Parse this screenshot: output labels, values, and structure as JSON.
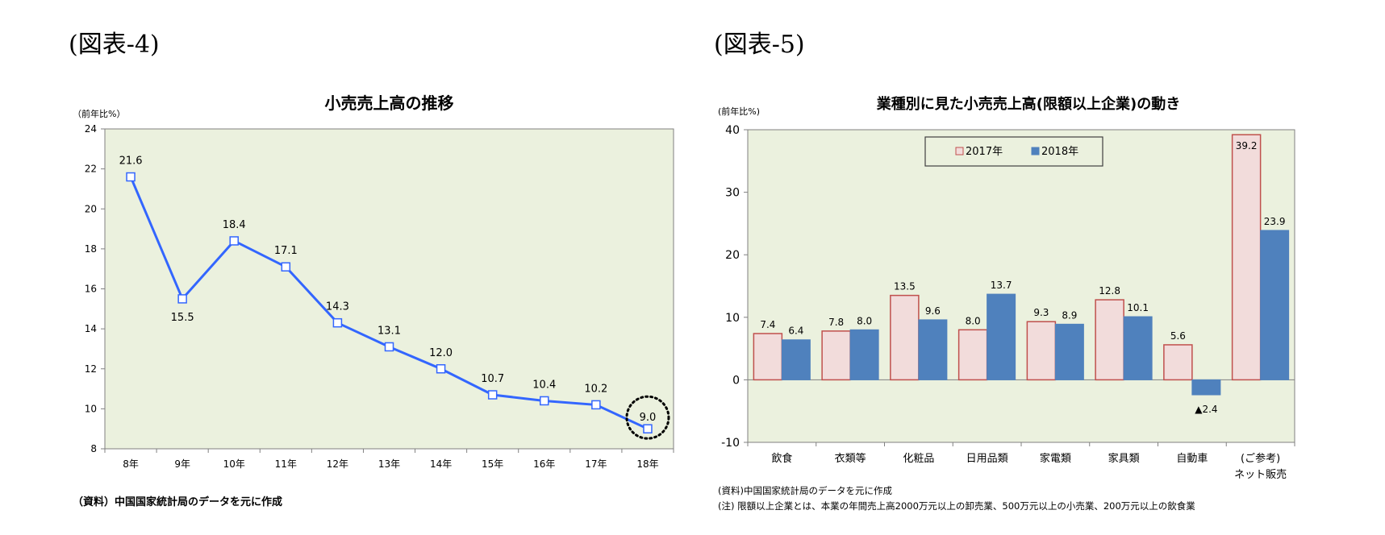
{
  "panel1": {
    "label": "(図表-4)",
    "source": "（資料）中国国家統計局のデータを元に作成"
  },
  "panel2": {
    "label": "(図表-5)",
    "source": "(資料)中国国家統計局のデータを元に作成",
    "note": "(注) 限額以上企業とは、本業の年間売上高2000万元以上の卸売業、500万元以上の小売業、200万元以上の飲食業"
  },
  "colors": {
    "plot_bg": "#ebf1de",
    "line": "#3366ff",
    "bar_2017": "#f2dcdb",
    "bar_2017_border": "#c0504d",
    "bar_2018": "#4f81bd"
  },
  "chart_data": [
    {
      "type": "line",
      "title": "小売売上高の推移",
      "ylabel": "（前年比%）",
      "categories": [
        "8年",
        "9年",
        "10年",
        "11年",
        "12年",
        "13年",
        "14年",
        "15年",
        "16年",
        "17年",
        "18年"
      ],
      "values": [
        21.6,
        15.5,
        18.4,
        17.1,
        14.3,
        13.1,
        12.0,
        10.7,
        10.4,
        10.2,
        9.0
      ],
      "data_labels": [
        "21.6",
        "15.5",
        "18.4",
        "17.1",
        "14.3",
        "13.1",
        "12.0",
        "10.7",
        "10.4",
        "10.2",
        "9.0"
      ],
      "ylim": [
        8,
        24
      ],
      "yticks": [
        "8",
        "10",
        "12",
        "14",
        "16",
        "18",
        "20",
        "22",
        "24"
      ],
      "highlight_index": 10,
      "grid": false
    },
    {
      "type": "bar",
      "title": "業種別に見た小売売上高(限額以上企業)の動き",
      "ylabel": "(前年比%)",
      "categories": [
        "飲食",
        "衣類等",
        "化粧品",
        "日用品類",
        "家電類",
        "家具類",
        "自動車",
        "(ご参考)\nネット販売"
      ],
      "series": [
        {
          "name": "2017年",
          "values": [
            7.4,
            7.8,
            13.5,
            8.0,
            9.3,
            12.8,
            5.6,
            39.2
          ],
          "labels": [
            "7.4",
            "7.8",
            "13.5",
            "8.0",
            "9.3",
            "12.8",
            "5.6",
            "39.2"
          ]
        },
        {
          "name": "2018年",
          "values": [
            6.4,
            8.0,
            9.6,
            13.7,
            8.9,
            10.1,
            -2.4,
            23.9
          ],
          "labels": [
            "6.4",
            "8.0",
            "9.6",
            "13.7",
            "8.9",
            "10.1",
            "▲2.4",
            "23.9"
          ]
        }
      ],
      "ylim": [
        -10,
        40
      ],
      "yticks": [
        "-10",
        "0",
        "10",
        "20",
        "30",
        "40"
      ],
      "legend": "top-center",
      "grid": false
    }
  ]
}
